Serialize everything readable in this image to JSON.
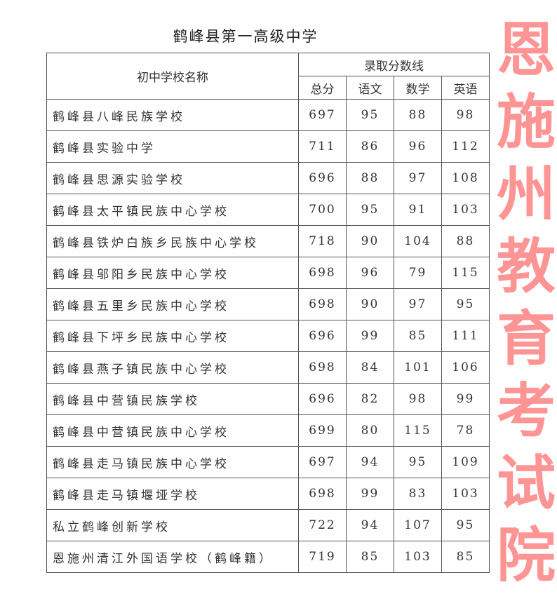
{
  "title": "鹤峰县第一高级中学",
  "header": {
    "school_name": "初中学校名称",
    "group": "录取分数线",
    "columns": [
      "总分",
      "语文",
      "数学",
      "英语"
    ]
  },
  "rows": [
    {
      "name": "鹤峰县八峰民族学校",
      "scores": [
        "697",
        "95",
        "88",
        "98"
      ]
    },
    {
      "name": "鹤峰县实验中学",
      "scores": [
        "711",
        "86",
        "96",
        "112"
      ]
    },
    {
      "name": "鹤峰县思源实验学校",
      "scores": [
        "696",
        "88",
        "97",
        "108"
      ]
    },
    {
      "name": "鹤峰县太平镇民族中心学校",
      "scores": [
        "700",
        "95",
        "91",
        "103"
      ]
    },
    {
      "name": "鹤峰县铁炉白族乡民族中心学校",
      "scores": [
        "718",
        "90",
        "104",
        "88"
      ]
    },
    {
      "name": "鹤峰县邬阳乡民族中心学校",
      "scores": [
        "698",
        "96",
        "79",
        "115"
      ]
    },
    {
      "name": "鹤峰县五里乡民族中心学校",
      "scores": [
        "698",
        "90",
        "97",
        "95"
      ]
    },
    {
      "name": "鹤峰县下坪乡民族中心学校",
      "scores": [
        "696",
        "99",
        "85",
        "111"
      ]
    },
    {
      "name": "鹤峰县燕子镇民族中心学校",
      "scores": [
        "698",
        "84",
        "101",
        "106"
      ]
    },
    {
      "name": "鹤峰县中营镇民族学校",
      "scores": [
        "696",
        "82",
        "98",
        "99"
      ]
    },
    {
      "name": "鹤峰县中营镇民族中心学校",
      "scores": [
        "699",
        "80",
        "115",
        "78"
      ]
    },
    {
      "name": "鹤峰县走马镇民族中心学校",
      "scores": [
        "697",
        "94",
        "95",
        "109"
      ]
    },
    {
      "name": "鹤峰县走马镇堰垭学校",
      "scores": [
        "698",
        "99",
        "83",
        "103"
      ]
    },
    {
      "name": "私立鹤峰创新学校",
      "scores": [
        "722",
        "94",
        "107",
        "95"
      ]
    },
    {
      "name": "恩施州清江外国语学校（鹤峰籍）",
      "scores": [
        "719",
        "85",
        "103",
        "85"
      ]
    }
  ],
  "watermark": {
    "text": "恩施州教育考试院",
    "color": "#ff4040"
  }
}
